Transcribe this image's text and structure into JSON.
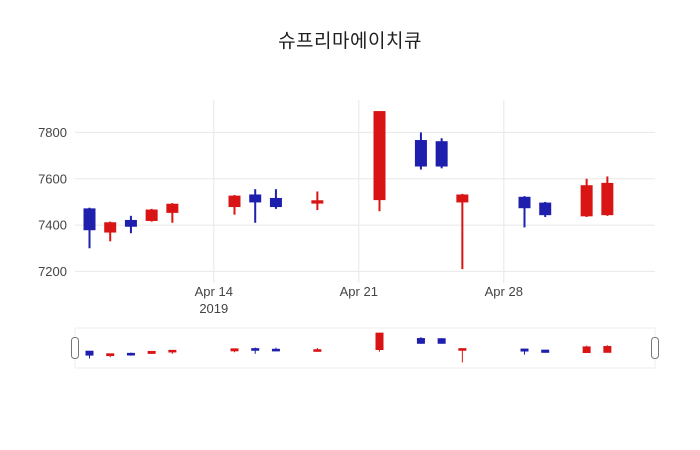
{
  "chart": {
    "title": "슈프리마에이치큐"
  },
  "chart_data": {
    "type": "candlestick",
    "title": "슈프리마에이치큐",
    "xlabel": "",
    "ylabel": "",
    "legend": "none",
    "grid": true,
    "grid_color": "#e8e8e8",
    "colors": {
      "increasing": "#d91414",
      "decreasing": "#1f1fae"
    },
    "xrange": [
      7.3,
      35.3
    ],
    "yrange": [
      7150,
      7940
    ],
    "yticks": [
      {
        "value": 7200,
        "label": "7200"
      },
      {
        "value": 7400,
        "label": "7400"
      },
      {
        "value": 7600,
        "label": "7600"
      },
      {
        "value": 7800,
        "label": "7800"
      }
    ],
    "xticks": [
      {
        "day": 14,
        "label": "Apr 14",
        "sublabel": "2019"
      },
      {
        "day": 21,
        "label": "Apr 21",
        "sublabel": ""
      },
      {
        "day": 28,
        "label": "Apr 28",
        "sublabel": ""
      }
    ],
    "candles": [
      {
        "date": "Apr 8",
        "day": 8,
        "open": 7470,
        "high": 7475,
        "low": 7300,
        "close": 7380
      },
      {
        "date": "Apr 9",
        "day": 9,
        "open": 7370,
        "high": 7415,
        "low": 7330,
        "close": 7410
      },
      {
        "date": "Apr 10",
        "day": 10,
        "open": 7420,
        "high": 7440,
        "low": 7365,
        "close": 7395
      },
      {
        "date": "Apr 11",
        "day": 11,
        "open": 7420,
        "high": 7470,
        "low": 7415,
        "close": 7465
      },
      {
        "date": "Apr 12",
        "day": 12,
        "open": 7455,
        "high": 7495,
        "low": 7410,
        "close": 7490
      },
      {
        "date": "Apr 15",
        "day": 15,
        "open": 7480,
        "high": 7530,
        "low": 7445,
        "close": 7525
      },
      {
        "date": "Apr 16",
        "day": 16,
        "open": 7530,
        "high": 7555,
        "low": 7410,
        "close": 7500
      },
      {
        "date": "Apr 17",
        "day": 17,
        "open": 7515,
        "high": 7555,
        "low": 7470,
        "close": 7480
      },
      {
        "date": "Apr 19",
        "day": 19,
        "open": 7495,
        "high": 7545,
        "low": 7465,
        "close": 7505
      },
      {
        "date": "Apr 22",
        "day": 22,
        "open": 7510,
        "high": 7890,
        "low": 7460,
        "close": 7890
      },
      {
        "date": "Apr 24",
        "day": 24,
        "open": 7765,
        "high": 7800,
        "low": 7640,
        "close": 7655
      },
      {
        "date": "Apr 25",
        "day": 25,
        "open": 7760,
        "high": 7775,
        "low": 7645,
        "close": 7655
      },
      {
        "date": "Apr 26",
        "day": 26,
        "open": 7500,
        "high": 7535,
        "low": 7210,
        "close": 7530
      },
      {
        "date": "Apr 29",
        "day": 29,
        "open": 7520,
        "high": 7525,
        "low": 7390,
        "close": 7475
      },
      {
        "date": "Apr 30",
        "day": 30,
        "open": 7495,
        "high": 7500,
        "low": 7435,
        "close": 7445
      },
      {
        "date": "May 2",
        "day": 32,
        "open": 7440,
        "high": 7600,
        "low": 7435,
        "close": 7570
      },
      {
        "date": "May 3",
        "day": 33,
        "open": 7445,
        "high": 7610,
        "low": 7440,
        "close": 7580
      }
    ],
    "range_slider": {
      "visible": true,
      "selected_range": [
        "Apr 8",
        "May 3"
      ]
    }
  }
}
